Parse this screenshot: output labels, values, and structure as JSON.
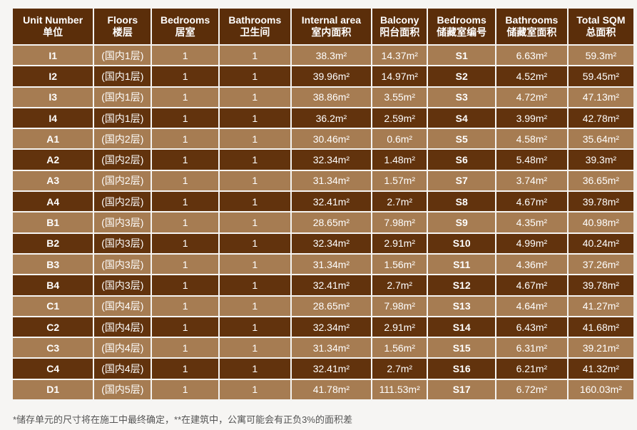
{
  "table": {
    "headers": [
      {
        "en": "Unit Number",
        "zh": "单位"
      },
      {
        "en": "Floors",
        "zh": "楼层"
      },
      {
        "en": "Bedrooms",
        "zh": "居室"
      },
      {
        "en": "Bathrooms",
        "zh": "卫生间"
      },
      {
        "en": "Internal area",
        "zh": "室内面积"
      },
      {
        "en": "Balcony",
        "zh": "阳台面积"
      },
      {
        "en": "Bedrooms",
        "zh": "储藏室编号"
      },
      {
        "en": "Bathrooms",
        "zh": "储藏室面积"
      },
      {
        "en": "Total SQM",
        "zh": "总面积"
      }
    ],
    "rows": [
      [
        "I1",
        "(国内1层)",
        "1",
        "1",
        "38.3m²",
        "14.37m²",
        "S1",
        "6.63m²",
        "59.3m²"
      ],
      [
        "I2",
        "(国内1层)",
        "1",
        "1",
        "39.96m²",
        "14.97m²",
        "S2",
        "4.52m²",
        "59.45m²"
      ],
      [
        "I3",
        "(国内1层)",
        "1",
        "1",
        "38.86m²",
        "3.55m²",
        "S3",
        "4.72m²",
        "47.13m²"
      ],
      [
        "I4",
        "(国内1层)",
        "1",
        "1",
        "36.2m²",
        "2.59m²",
        "S4",
        "3.99m²",
        "42.78m²"
      ],
      [
        "A1",
        "(国内2层)",
        "1",
        "1",
        "30.46m²",
        "0.6m²",
        "S5",
        "4.58m²",
        "35.64m²"
      ],
      [
        "A2",
        "(国内2层)",
        "1",
        "1",
        "32.34m²",
        "1.48m²",
        "S6",
        "5.48m²",
        "39.3m²"
      ],
      [
        "A3",
        "(国内2层)",
        "1",
        "1",
        "31.34m²",
        "1.57m²",
        "S7",
        "3.74m²",
        "36.65m²"
      ],
      [
        "A4",
        "(国内2层)",
        "1",
        "1",
        "32.41m²",
        "2.7m²",
        "S8",
        "4.67m²",
        "39.78m²"
      ],
      [
        "B1",
        "(国内3层)",
        "1",
        "1",
        "28.65m²",
        "7.98m²",
        "S9",
        "4.35m²",
        "40.98m²"
      ],
      [
        "B2",
        "(国内3层)",
        "1",
        "1",
        "32.34m²",
        "2.91m²",
        "S10",
        "4.99m²",
        "40.24m²"
      ],
      [
        "B3",
        "(国内3层)",
        "1",
        "1",
        "31.34m²",
        "1.56m²",
        "S11",
        "4.36m²",
        "37.26m²"
      ],
      [
        "B4",
        "(国内3层)",
        "1",
        "1",
        "32.41m²",
        "2.7m²",
        "S12",
        "4.67m²",
        "39.78m²"
      ],
      [
        "C1",
        "(国内4层)",
        "1",
        "1",
        "28.65m²",
        "7.98m²",
        "S13",
        "4.64m²",
        "41.27m²"
      ],
      [
        "C2",
        "(国内4层)",
        "1",
        "1",
        "32.34m²",
        "2.91m²",
        "S14",
        "6.43m²",
        "41.68m²"
      ],
      [
        "C3",
        "(国内4层)",
        "1",
        "1",
        "31.34m²",
        "1.56m²",
        "S15",
        "6.31m²",
        "39.21m²"
      ],
      [
        "C4",
        "(国内4层)",
        "1",
        "1",
        "32.41m²",
        "2.7m²",
        "S16",
        "6.21m²",
        "41.32m²"
      ],
      [
        "D1",
        "(国内5层)",
        "1",
        "1",
        "41.78m²",
        "111.53m²",
        "S17",
        "6.72m²",
        "160.03m²"
      ]
    ]
  },
  "footnote": "*储存单元的尺寸将在施工中最终确定，**在建筑中，公寓可能会有正负3%的面积差"
}
